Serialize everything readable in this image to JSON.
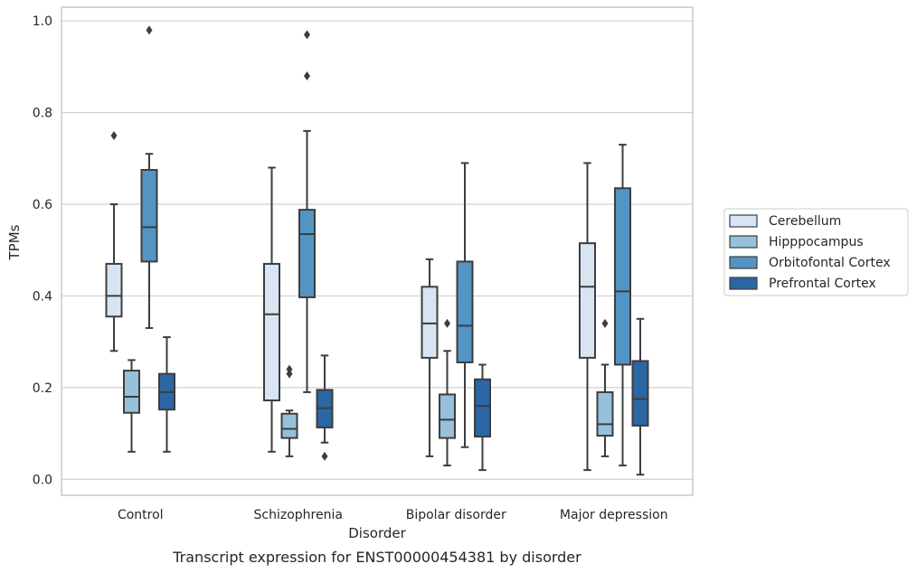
{
  "chart_data": {
    "type": "box",
    "title": "",
    "caption": "Transcript expression for ENST00000454381 by disorder",
    "xlabel": "Disorder",
    "ylabel": "TPMs",
    "ylim": [
      -0.035,
      1.03
    ],
    "yticks": [
      0.0,
      0.2,
      0.4,
      0.6,
      0.8,
      1.0
    ],
    "ytick_labels": [
      "0.0",
      "0.2",
      "0.4",
      "0.6",
      "0.8",
      "1.0"
    ],
    "grid": true,
    "legend_position": "right",
    "categories": [
      "Control",
      "Schizophrenia",
      "Bipolar disorder",
      "Major depression"
    ],
    "series": [
      {
        "name": "Cerebellum",
        "color": "#d7e5f3",
        "boxes": [
          {
            "whislo": 0.28,
            "q1": 0.355,
            "med": 0.4,
            "q3": 0.47,
            "whishi": 0.6,
            "fliers": [
              0.75
            ]
          },
          {
            "whislo": 0.06,
            "q1": 0.172,
            "med": 0.36,
            "q3": 0.47,
            "whishi": 0.68,
            "fliers": []
          },
          {
            "whislo": 0.05,
            "q1": 0.265,
            "med": 0.34,
            "q3": 0.42,
            "whishi": 0.48,
            "fliers": []
          },
          {
            "whislo": 0.02,
            "q1": 0.265,
            "med": 0.42,
            "q3": 0.515,
            "whishi": 0.69,
            "fliers": []
          }
        ]
      },
      {
        "name": "Hipppocampus",
        "color": "#97c0dc",
        "boxes": [
          {
            "whislo": 0.06,
            "q1": 0.145,
            "med": 0.18,
            "q3": 0.237,
            "whishi": 0.26,
            "fliers": []
          },
          {
            "whislo": 0.05,
            "q1": 0.09,
            "med": 0.11,
            "q3": 0.143,
            "whishi": 0.15,
            "fliers": [
              0.23,
              0.24
            ]
          },
          {
            "whislo": 0.03,
            "q1": 0.09,
            "med": 0.13,
            "q3": 0.185,
            "whishi": 0.28,
            "fliers": [
              0.34
            ]
          },
          {
            "whislo": 0.05,
            "q1": 0.095,
            "med": 0.12,
            "q3": 0.19,
            "whishi": 0.25,
            "fliers": [
              0.34
            ]
          }
        ]
      },
      {
        "name": "Orbitofontal Cortex",
        "color": "#5294c4",
        "boxes": [
          {
            "whislo": 0.33,
            "q1": 0.475,
            "med": 0.55,
            "q3": 0.675,
            "whishi": 0.71,
            "fliers": [
              0.98
            ]
          },
          {
            "whislo": 0.19,
            "q1": 0.397,
            "med": 0.535,
            "q3": 0.588,
            "whishi": 0.76,
            "fliers": [
              0.88,
              0.97
            ]
          },
          {
            "whislo": 0.07,
            "q1": 0.255,
            "med": 0.335,
            "q3": 0.475,
            "whishi": 0.69,
            "fliers": []
          },
          {
            "whislo": 0.03,
            "q1": 0.25,
            "med": 0.41,
            "q3": 0.635,
            "whishi": 0.73,
            "fliers": []
          }
        ]
      },
      {
        "name": "Prefrontal Cortex",
        "color": "#2a67a4",
        "boxes": [
          {
            "whislo": 0.06,
            "q1": 0.152,
            "med": 0.19,
            "q3": 0.23,
            "whishi": 0.31,
            "fliers": []
          },
          {
            "whislo": 0.08,
            "q1": 0.113,
            "med": 0.155,
            "q3": 0.195,
            "whishi": 0.27,
            "fliers": [
              0.05
            ]
          },
          {
            "whislo": 0.02,
            "q1": 0.093,
            "med": 0.16,
            "q3": 0.218,
            "whishi": 0.25,
            "fliers": []
          },
          {
            "whislo": 0.01,
            "q1": 0.117,
            "med": 0.175,
            "q3": 0.258,
            "whishi": 0.35,
            "fliers": []
          }
        ]
      }
    ]
  },
  "colors": {
    "grid": "#d0d0d0",
    "frame": "#c8c8c8",
    "box_edge": "#3d3d3d"
  }
}
